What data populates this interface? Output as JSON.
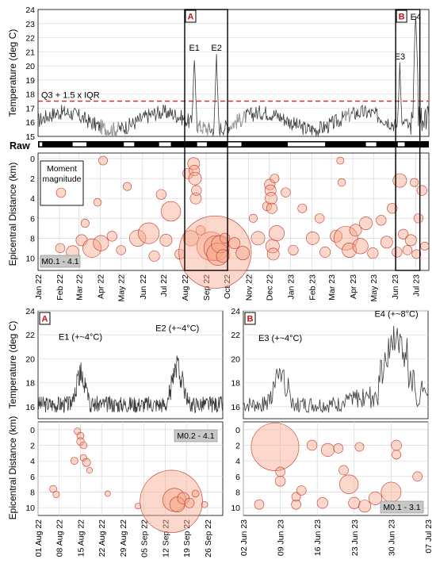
{
  "chart_data": [
    {
      "id": "overview_temperature",
      "type": "line",
      "ylabel": "Temperature (deg C)",
      "ylim": [
        15,
        24
      ],
      "yticks": [
        "15",
        "16",
        "17",
        "18",
        "19",
        "20",
        "21",
        "22",
        "23",
        "24"
      ],
      "threshold": {
        "value": 17.5,
        "label": "Q3 + 1.5 x IQR",
        "color": "#e02020"
      },
      "x_range": [
        "2022-01-01",
        "2023-07-20"
      ],
      "event_labels": [
        {
          "label": "E1",
          "date": "2022-08-15",
          "y": 20.9
        },
        {
          "label": "E2",
          "date": "2022-09-16",
          "y": 20.9
        },
        {
          "label": "E3",
          "date": "2023-06-08",
          "y": 20.3
        },
        {
          "label": "E4",
          "date": "2023-07-01",
          "y": 23.1
        }
      ],
      "boxes": [
        {
          "label": "A",
          "start": "2022-08-01",
          "end": "2022-10-02"
        },
        {
          "label": "B",
          "start": "2023-06-02",
          "end": "2023-07-07"
        }
      ],
      "series_colors": {
        "raw": "#3a3a3a",
        "gap": "#9b9b9b"
      },
      "gap_segments": [
        [
          "2022-04-01",
          "2022-04-28"
        ],
        [
          "2022-08-20",
          "2022-09-05"
        ],
        [
          "2022-10-05",
          "2022-10-28"
        ],
        [
          "2023-03-20",
          "2023-03-30"
        ]
      ]
    },
    {
      "id": "raw_strip",
      "type": "table",
      "label": "Raw",
      "gaps": [
        [
          "2022-01-03",
          "2022-01-07"
        ],
        [
          "2022-02-20",
          "2022-03-12"
        ],
        [
          "2022-05-05",
          "2022-05-20"
        ],
        [
          "2022-06-25",
          "2022-07-12"
        ],
        [
          "2022-08-19",
          "2022-09-02"
        ],
        [
          "2022-10-02",
          "2022-10-22"
        ],
        [
          "2022-12-28",
          "2023-02-20"
        ],
        [
          "2023-04-20",
          "2023-05-05"
        ],
        [
          "2023-06-05",
          "2023-06-15"
        ]
      ]
    },
    {
      "id": "overview_bubbles",
      "type": "scatter",
      "ylabel": "Epicentral Distance (km)",
      "ylim": [
        0,
        11
      ],
      "yticks": [
        "0",
        "2",
        "4",
        "6",
        "8",
        "10"
      ],
      "legend": {
        "title_line1": "Moment",
        "title_line2": "magnitude"
      },
      "magnitude_range": "M0.1 - 4.1",
      "x_ticks": [
        "Jan 22",
        "Feb 22",
        "Mar 22",
        "Apr 22",
        "May 22",
        "Jun 22",
        "Jul 22",
        "Aug 22",
        "Sep 22",
        "Oct 22",
        "Nov 22",
        "Dec 22",
        "Jan 23",
        "Feb 23",
        "Mar 23",
        "Apr 23",
        "May 23",
        "Jun 23",
        "Jul 23"
      ],
      "boxes": [
        {
          "label": "A",
          "start": "2022-08-01",
          "end": "2022-10-02"
        },
        {
          "label": "B",
          "start": "2023-06-02",
          "end": "2023-07-07"
        }
      ],
      "points": [
        {
          "x": "2022-02-02",
          "y": 9.0,
          "m": 0.8
        },
        {
          "x": "2022-02-20",
          "y": 9.4,
          "m": 1.3
        },
        {
          "x": "2022-03-05",
          "y": 8.2,
          "m": 1.1
        },
        {
          "x": "2022-03-10",
          "y": 6.5,
          "m": 0.6
        },
        {
          "x": "2022-03-20",
          "y": 9.0,
          "m": 1.9
        },
        {
          "x": "2022-03-28",
          "y": 4.4,
          "m": 0.5
        },
        {
          "x": "2022-04-02",
          "y": 8.5,
          "m": 1.6
        },
        {
          "x": "2022-04-05",
          "y": 0.2,
          "m": 0.7
        },
        {
          "x": "2022-04-18",
          "y": 7.8,
          "m": 0.9
        },
        {
          "x": "2022-05-01",
          "y": 9.2,
          "m": 0.8
        },
        {
          "x": "2022-05-10",
          "y": 2.8,
          "m": 0.6
        },
        {
          "x": "2022-05-25",
          "y": 8.0,
          "m": 1.7
        },
        {
          "x": "2022-06-10",
          "y": 7.5,
          "m": 2.1
        },
        {
          "x": "2022-06-18",
          "y": 9.8,
          "m": 1.0
        },
        {
          "x": "2022-06-28",
          "y": 3.6,
          "m": 0.9
        },
        {
          "x": "2022-07-05",
          "y": 8.2,
          "m": 1.2
        },
        {
          "x": "2022-07-12",
          "y": 5.3,
          "m": 2.0
        },
        {
          "x": "2022-07-25",
          "y": 9.6,
          "m": 0.9
        },
        {
          "x": "2022-08-06",
          "y": 1.5,
          "m": 1.0
        },
        {
          "x": "2022-08-10",
          "y": 8.0,
          "m": 1.6
        },
        {
          "x": "2022-08-14",
          "y": 0.5,
          "m": 1.2
        },
        {
          "x": "2022-08-15",
          "y": 1.2,
          "m": 1.0
        },
        {
          "x": "2022-08-16",
          "y": 2.0,
          "m": 1.3
        },
        {
          "x": "2022-08-17",
          "y": 4.0,
          "m": 1.1
        },
        {
          "x": "2022-08-18",
          "y": 3.2,
          "m": 0.9
        },
        {
          "x": "2022-08-24",
          "y": 7.2,
          "m": 0.8
        },
        {
          "x": "2022-09-08",
          "y": 8.8,
          "m": 2.6
        },
        {
          "x": "2022-09-14",
          "y": 9.4,
          "m": 4.1
        },
        {
          "x": "2022-09-16",
          "y": 9.0,
          "m": 2.4
        },
        {
          "x": "2022-09-18",
          "y": 9.6,
          "m": 2.2
        },
        {
          "x": "2022-09-21",
          "y": 8.6,
          "m": 1.8
        },
        {
          "x": "2022-09-25",
          "y": 9.8,
          "m": 1.3
        },
        {
          "x": "2022-09-28",
          "y": 8.0,
          "m": 0.9
        },
        {
          "x": "2022-10-12",
          "y": 8.5,
          "m": 1.1
        },
        {
          "x": "2022-10-24",
          "y": 9.5,
          "m": 1.4
        },
        {
          "x": "2022-11-08",
          "y": 6.0,
          "m": 0.6
        },
        {
          "x": "2022-11-15",
          "y": 8.0,
          "m": 1.4
        },
        {
          "x": "2022-11-28",
          "y": 4.8,
          "m": 0.7
        },
        {
          "x": "2022-12-02",
          "y": 2.6,
          "m": 1.0
        },
        {
          "x": "2022-12-03",
          "y": 3.2,
          "m": 1.1
        },
        {
          "x": "2022-12-04",
          "y": 4.0,
          "m": 1.2
        },
        {
          "x": "2022-12-05",
          "y": 5.0,
          "m": 1.0
        },
        {
          "x": "2022-12-06",
          "y": 8.8,
          "m": 1.4
        },
        {
          "x": "2022-12-07",
          "y": 9.6,
          "m": 1.2
        },
        {
          "x": "2022-12-09",
          "y": 2.0,
          "m": 0.7
        },
        {
          "x": "2022-12-12",
          "y": 7.5,
          "m": 1.6
        },
        {
          "x": "2022-12-25",
          "y": 3.4,
          "m": 0.8
        },
        {
          "x": "2023-01-05",
          "y": 9.2,
          "m": 0.9
        },
        {
          "x": "2023-01-18",
          "y": 5.0,
          "m": 0.7
        },
        {
          "x": "2023-02-02",
          "y": 8.0,
          "m": 1.3
        },
        {
          "x": "2023-02-12",
          "y": 6.0,
          "m": 0.8
        },
        {
          "x": "2023-02-20",
          "y": 9.4,
          "m": 1.0
        },
        {
          "x": "2023-03-08",
          "y": 7.8,
          "m": 1.2
        },
        {
          "x": "2023-03-14",
          "y": 0.2,
          "m": 0.4
        },
        {
          "x": "2023-03-16",
          "y": 2.4,
          "m": 0.5
        },
        {
          "x": "2023-03-22",
          "y": 8.0,
          "m": 2.3
        },
        {
          "x": "2023-03-27",
          "y": 9.2,
          "m": 1.5
        },
        {
          "x": "2023-04-05",
          "y": 7.2,
          "m": 1.2
        },
        {
          "x": "2023-04-12",
          "y": 8.8,
          "m": 1.6
        },
        {
          "x": "2023-04-20",
          "y": 6.5,
          "m": 1.3
        },
        {
          "x": "2023-04-30",
          "y": 9.5,
          "m": 1.0
        },
        {
          "x": "2023-05-12",
          "y": 6.2,
          "m": 0.9
        },
        {
          "x": "2023-05-20",
          "y": 8.4,
          "m": 1.2
        },
        {
          "x": "2023-05-28",
          "y": 5.0,
          "m": 0.9
        },
        {
          "x": "2023-06-04",
          "y": 9.4,
          "m": 0.9
        },
        {
          "x": "2023-06-08",
          "y": 2.2,
          "m": 1.4
        },
        {
          "x": "2023-06-13",
          "y": 7.6,
          "m": 0.9
        },
        {
          "x": "2023-06-19",
          "y": 9.2,
          "m": 0.8
        },
        {
          "x": "2023-06-24",
          "y": 8.2,
          "m": 1.1
        },
        {
          "x": "2023-06-29",
          "y": 2.4,
          "m": 0.6
        },
        {
          "x": "2023-07-02",
          "y": 9.6,
          "m": 0.7
        },
        {
          "x": "2023-07-05",
          "y": 6.0,
          "m": 0.8
        },
        {
          "x": "2023-07-10",
          "y": 3.2,
          "m": 0.9
        },
        {
          "x": "2023-07-14",
          "y": 8.8,
          "m": 0.6
        }
      ]
    },
    {
      "id": "panel_A_temperature",
      "type": "line",
      "panel_label": "A",
      "ylabel": "Temperature (deg C)",
      "ylim": [
        15,
        24
      ],
      "yticks": [
        "16",
        "18",
        "20",
        "22",
        "24"
      ],
      "x_range": [
        "2022-08-01",
        "2022-10-01"
      ],
      "annotations": [
        {
          "text": "E1 (+~4°C)",
          "date": "2022-08-15",
          "y": 21.6
        },
        {
          "text": "E2 (+~4°C)",
          "date": "2022-09-16",
          "y": 22.3
        }
      ]
    },
    {
      "id": "panel_A_bubbles",
      "type": "scatter",
      "ylabel": "Epicentral Distance (km)",
      "ylim": [
        -1,
        11
      ],
      "yticks": [
        "0",
        "2",
        "4",
        "6",
        "8",
        "10"
      ],
      "magnitude_range": "M0.2 - 4.1",
      "x_ticks": [
        "01 Aug 22",
        "08 Aug 22",
        "15 Aug 22",
        "22 Aug 22",
        "29 Aug 22",
        "05 Sep 22",
        "12 Sep 22",
        "19 Sep 22",
        "26 Sep 22"
      ],
      "points": [
        {
          "x": "2022-08-06",
          "y": 7.6,
          "m": 0.6
        },
        {
          "x": "2022-08-07",
          "y": 8.3,
          "m": 0.5
        },
        {
          "x": "2022-08-13",
          "y": 4.0,
          "m": 0.6
        },
        {
          "x": "2022-08-14",
          "y": 0.2,
          "m": 0.5
        },
        {
          "x": "2022-08-15",
          "y": 0.8,
          "m": 0.6
        },
        {
          "x": "2022-08-15",
          "y": 1.5,
          "m": 0.7
        },
        {
          "x": "2022-08-16",
          "y": 2.0,
          "m": 0.6
        },
        {
          "x": "2022-08-16",
          "y": 3.6,
          "m": 0.5
        },
        {
          "x": "2022-08-17",
          "y": 4.2,
          "m": 0.8
        },
        {
          "x": "2022-08-18",
          "y": 5.2,
          "m": 0.3
        },
        {
          "x": "2022-08-24",
          "y": 8.2,
          "m": 0.2
        },
        {
          "x": "2022-09-03",
          "y": 9.8,
          "m": 0.3
        },
        {
          "x": "2022-09-14",
          "y": 9.2,
          "m": 4.1
        },
        {
          "x": "2022-09-15",
          "y": 9.0,
          "m": 2.5
        },
        {
          "x": "2022-09-16",
          "y": 9.6,
          "m": 1.8
        },
        {
          "x": "2022-09-18",
          "y": 8.8,
          "m": 1.4
        },
        {
          "x": "2022-09-20",
          "y": 9.4,
          "m": 1.1
        },
        {
          "x": "2022-09-22",
          "y": 8.2,
          "m": 0.6
        },
        {
          "x": "2022-09-25",
          "y": 9.6,
          "m": 0.4
        }
      ]
    },
    {
      "id": "panel_B_temperature",
      "type": "line",
      "panel_label": "B",
      "ylim": [
        15,
        24
      ],
      "yticks": [
        "16",
        "18",
        "20",
        "22",
        "24"
      ],
      "x_range": [
        "2023-06-02",
        "2023-07-07"
      ],
      "annotations": [
        {
          "text": "E3 (+~4°C)",
          "date": "2023-06-09",
          "y": 21.5
        },
        {
          "text": "E4 (+~8°C)",
          "date": "2023-07-01",
          "y": 23.5
        }
      ]
    },
    {
      "id": "panel_B_bubbles",
      "type": "scatter",
      "ylim": [
        -1,
        11
      ],
      "yticks": [
        "0",
        "2",
        "4",
        "6",
        "8",
        "10"
      ],
      "magnitude_range": "M0.1 - 3.1",
      "x_ticks": [
        "02 Jun 23",
        "09 Jun 23",
        "16 Jun 23",
        "23 Jun 23",
        "30 Jun 23",
        "07 Jul 23"
      ],
      "points": [
        {
          "x": "2023-06-05",
          "y": 9.6,
          "m": 0.5
        },
        {
          "x": "2023-06-08",
          "y": 2.2,
          "m": 3.1
        },
        {
          "x": "2023-06-09",
          "y": 6.6,
          "m": 0.6
        },
        {
          "x": "2023-06-09",
          "y": 5.4,
          "m": 0.5
        },
        {
          "x": "2023-06-12",
          "y": 9.6,
          "m": 0.5
        },
        {
          "x": "2023-06-12",
          "y": 8.6,
          "m": 0.4
        },
        {
          "x": "2023-06-13",
          "y": 7.8,
          "m": 0.5
        },
        {
          "x": "2023-06-15",
          "y": 2.0,
          "m": 0.6
        },
        {
          "x": "2023-06-17",
          "y": 9.4,
          "m": 0.7
        },
        {
          "x": "2023-06-18",
          "y": 2.6,
          "m": 1.0
        },
        {
          "x": "2023-06-20",
          "y": 2.4,
          "m": 0.5
        },
        {
          "x": "2023-06-21",
          "y": 5.2,
          "m": 0.5
        },
        {
          "x": "2023-06-22",
          "y": 7.0,
          "m": 1.6
        },
        {
          "x": "2023-06-23",
          "y": 9.4,
          "m": 0.8
        },
        {
          "x": "2023-06-24",
          "y": 2.2,
          "m": 0.4
        },
        {
          "x": "2023-06-25",
          "y": 9.8,
          "m": 0.9
        },
        {
          "x": "2023-06-27",
          "y": 8.8,
          "m": 1.0
        },
        {
          "x": "2023-06-30",
          "y": 8.0,
          "m": 1.7
        },
        {
          "x": "2023-07-01",
          "y": 2.0,
          "m": 0.6
        },
        {
          "x": "2023-07-01",
          "y": 3.2,
          "m": 0.4
        },
        {
          "x": "2023-07-05",
          "y": 6.0,
          "m": 0.5
        }
      ]
    }
  ]
}
